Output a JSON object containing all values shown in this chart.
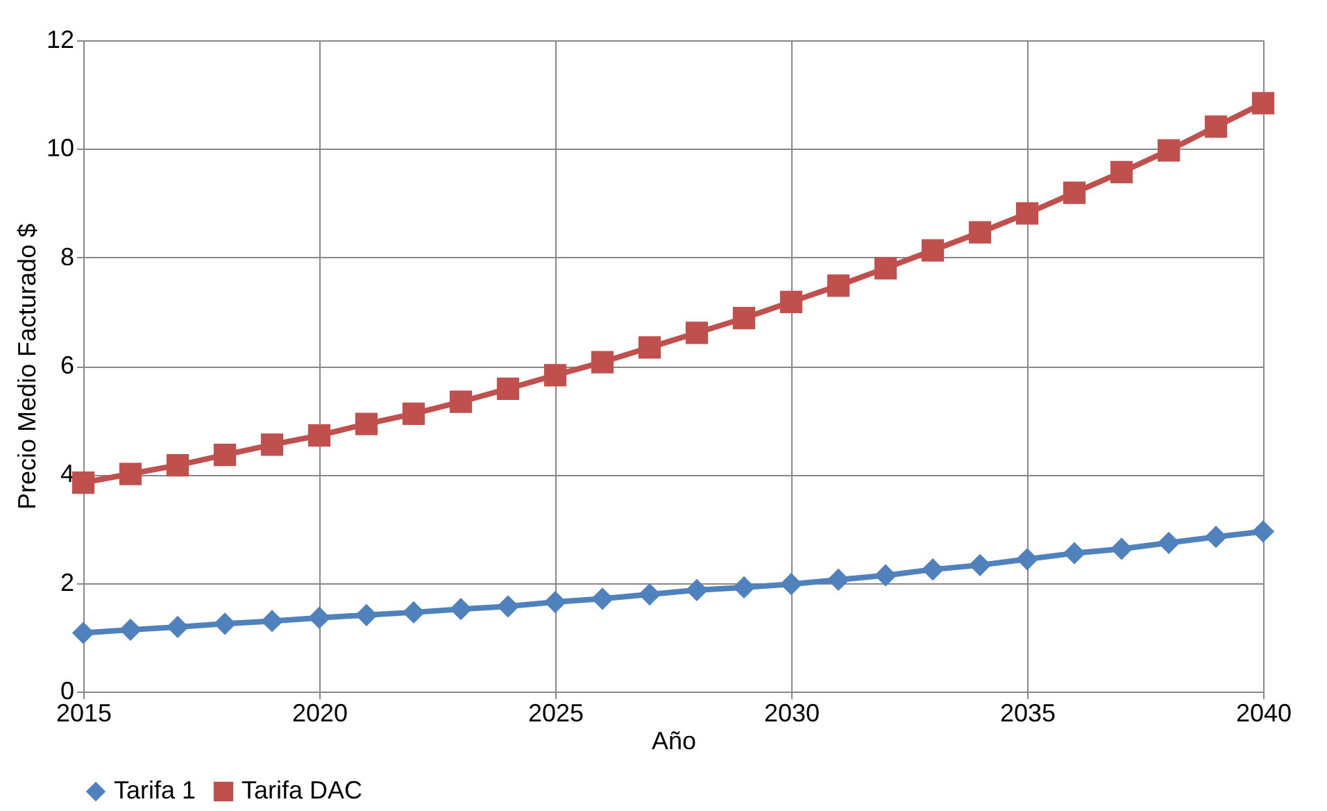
{
  "chart_data": {
    "type": "line",
    "xlabel": "Año",
    "ylabel": "Precio Medio Facturado $",
    "x": [
      2015,
      2016,
      2017,
      2018,
      2019,
      2020,
      2021,
      2022,
      2023,
      2024,
      2025,
      2026,
      2027,
      2028,
      2029,
      2030,
      2031,
      2032,
      2033,
      2034,
      2035,
      2036,
      2037,
      2038,
      2039,
      2040
    ],
    "series": [
      {
        "name": "Tarifa 1",
        "color": "#4f81bd",
        "marker": "diamond",
        "values": [
          1.08,
          1.14,
          1.19,
          1.25,
          1.3,
          1.36,
          1.41,
          1.46,
          1.52,
          1.57,
          1.65,
          1.71,
          1.79,
          1.87,
          1.92,
          1.98,
          2.06,
          2.14,
          2.25,
          2.33,
          2.44,
          2.55,
          2.63,
          2.74,
          2.85,
          2.95
        ]
      },
      {
        "name": "Tarifa DAC",
        "color": "#c0504d",
        "marker": "square",
        "values": [
          3.85,
          4.01,
          4.17,
          4.36,
          4.55,
          4.72,
          4.93,
          5.12,
          5.34,
          5.58,
          5.83,
          6.07,
          6.34,
          6.61,
          6.88,
          7.18,
          7.48,
          7.8,
          8.13,
          8.46,
          8.81,
          9.19,
          9.57,
          9.97,
          10.41,
          10.84
        ]
      }
    ],
    "xlim": [
      2015,
      2040
    ],
    "xticks": [
      2015,
      2020,
      2025,
      2030,
      2035,
      2040
    ],
    "ylim": [
      0,
      12
    ],
    "yticks": [
      0,
      2,
      4,
      6,
      8,
      10,
      12
    ],
    "grid": true,
    "legend": "bottom",
    "line_style": "solid"
  }
}
